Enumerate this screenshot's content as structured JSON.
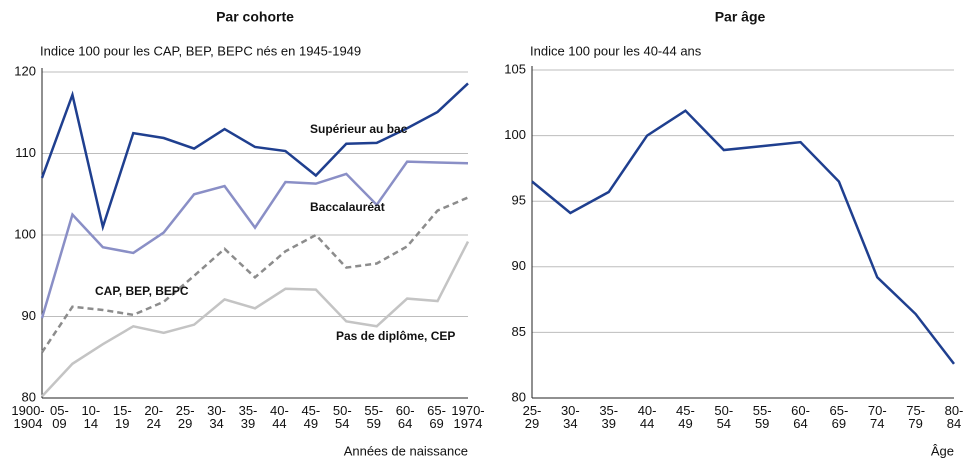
{
  "chart_data": [
    {
      "type": "line",
      "title": "Par cohorte",
      "subtitle": "Indice 100 pour les CAP, BEP, BEPC nés en 1945-1949",
      "xlabel": "Années de naissance",
      "categories": [
        "1900-\n1904",
        "05-\n09",
        "10-\n14",
        "15-\n19",
        "20-\n24",
        "25-\n29",
        "30-\n34",
        "35-\n39",
        "40-\n44",
        "45-\n49",
        "50-\n54",
        "55-\n59",
        "60-\n64",
        "65-\n69",
        "1970-\n1974"
      ],
      "series": [
        {
          "name": "Supérieur au bac",
          "color": "#1f3f8f",
          "dashed": false,
          "values": [
            107,
            117.2,
            101,
            112.5,
            111.9,
            110.6,
            113,
            110.8,
            110.3,
            107.3,
            111.2,
            111.3,
            113.1,
            115.1,
            118.6
          ]
        },
        {
          "name": "Baccalauréat",
          "color": "#8a8fc6",
          "dashed": false,
          "values": [
            89.8,
            102.5,
            98.5,
            97.8,
            100.3,
            105,
            106,
            100.9,
            106.5,
            106.3,
            107.5,
            103.7,
            109,
            108.9,
            108.8
          ]
        },
        {
          "name": "CAP, BEP, BEPC",
          "color": "#8c8c8c",
          "dashed": true,
          "values": [
            85.6,
            91.2,
            90.8,
            90.2,
            91.8,
            95,
            98.3,
            94.8,
            98,
            100,
            96,
            96.5,
            98.6,
            103,
            104.6
          ]
        },
        {
          "name": "Pas de diplôme, CEP",
          "color": "#c4c4c4",
          "dashed": false,
          "values": [
            80.2,
            84.2,
            86.6,
            88.8,
            88,
            89,
            92.1,
            91,
            93.4,
            93.3,
            89.4,
            88.8,
            92.2,
            91.9,
            99.2
          ]
        }
      ],
      "ylim": [
        80,
        120
      ],
      "yticks": [
        80,
        90,
        100,
        110,
        120
      ],
      "grid": true
    },
    {
      "type": "line",
      "title": "Par âge",
      "subtitle": "Indice 100 pour les 40-44 ans",
      "xlabel": "Âge",
      "categories": [
        "25-\n29",
        "30-\n34",
        "35-\n39",
        "40-\n44",
        "45-\n49",
        "50-\n54",
        "55-\n59",
        "60-\n64",
        "65-\n69",
        "70-\n74",
        "75-\n79",
        "80-\n84"
      ],
      "series": [
        {
          "color": "#1f3f8f",
          "dashed": false,
          "values": [
            96.5,
            94.1,
            95.7,
            100,
            101.9,
            98.9,
            99.2,
            99.5,
            96.5,
            89.2,
            86.4,
            82.6
          ]
        }
      ],
      "ylim": [
        80,
        105
      ],
      "yticks": [
        80,
        85,
        90,
        95,
        100,
        105
      ],
      "grid": true
    }
  ]
}
